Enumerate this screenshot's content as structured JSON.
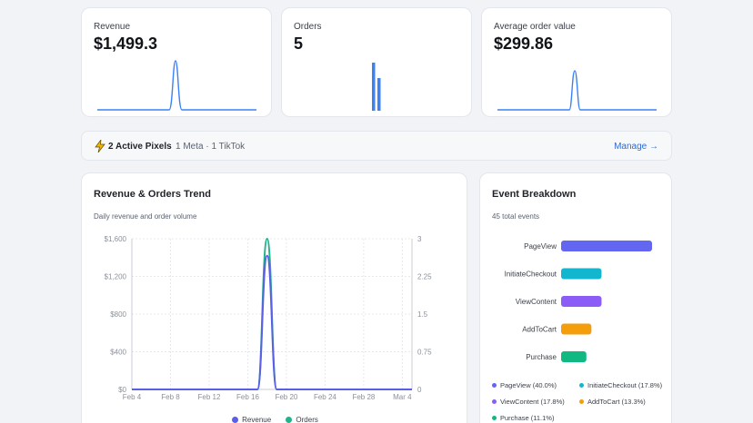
{
  "stats": [
    {
      "label": "Revenue",
      "value": "$1,499.3",
      "color": "#3b82f6"
    },
    {
      "label": "Orders",
      "value": "5",
      "color": "#3b82f6"
    },
    {
      "label": "Average order value",
      "value": "$299.86",
      "color": "#3b82f6"
    }
  ],
  "pixels": {
    "icon": "bolt-icon",
    "title": "2 Active Pixels",
    "detail": "1 Meta · 1 TikTok",
    "manage_label": "Manage →"
  },
  "trend": {
    "title": "Revenue & Orders Trend",
    "subtitle": "Daily revenue and order volume",
    "legend": [
      {
        "name": "Revenue",
        "color": "#5b5fe6"
      },
      {
        "name": "Orders",
        "color": "#1fb48a"
      }
    ]
  },
  "events": {
    "title": "Event Breakdown",
    "subtitle": "45 total events",
    "items": [
      {
        "name": "PageView",
        "count": 18,
        "color": "#6366f1"
      },
      {
        "name": "InitiateCheckout",
        "count": 8,
        "color": "#13b6cf"
      },
      {
        "name": "ViewContent",
        "count": 8,
        "color": "#8b5cf6"
      },
      {
        "name": "AddToCart",
        "count": 6,
        "color": "#f59e0b"
      },
      {
        "name": "Purchase",
        "count": 5,
        "color": "#10b981"
      }
    ],
    "legend": [
      {
        "label": "PageView (40.0%)",
        "color": "#6366f1"
      },
      {
        "label": "InitiateCheckout (17.8%)",
        "color": "#13b6cf"
      },
      {
        "label": "ViewContent (17.8%)",
        "color": "#8b5cf6"
      },
      {
        "label": "AddToCart (13.3%)",
        "color": "#f59e0b"
      },
      {
        "label": "Purchase (11.1%)",
        "color": "#10b981"
      }
    ]
  },
  "chart_data": [
    {
      "type": "line",
      "title": "Revenue & Orders Trend",
      "x_ticks": [
        "Feb 4",
        "Feb 8",
        "Feb 12",
        "Feb 16",
        "Feb 20",
        "Feb 24",
        "Feb 28",
        "Mar 4"
      ],
      "y_left_ticks": [
        "$0",
        "$400",
        "$800",
        "$1,200",
        "$1,600"
      ],
      "y_right_ticks": [
        "0",
        "0.75",
        "1.5",
        "2.25",
        "3"
      ],
      "ylim_left": [
        0,
        1600
      ],
      "ylim_right": [
        0,
        3
      ],
      "x": [
        "Feb 4",
        "Feb 5",
        "Feb 6",
        "Feb 7",
        "Feb 8",
        "Feb 9",
        "Feb 10",
        "Feb 11",
        "Feb 12",
        "Feb 13",
        "Feb 14",
        "Feb 15",
        "Feb 16",
        "Feb 17",
        "Feb 18",
        "Feb 19",
        "Feb 20",
        "Feb 21",
        "Feb 22",
        "Feb 23",
        "Feb 24",
        "Feb 25",
        "Feb 26",
        "Feb 27",
        "Feb 28",
        "Mar 1",
        "Mar 2",
        "Mar 3",
        "Mar 4",
        "Mar 5"
      ],
      "series": [
        {
          "name": "Revenue",
          "axis": "left",
          "values": [
            0,
            0,
            0,
            0,
            0,
            0,
            0,
            0,
            0,
            0,
            0,
            0,
            0,
            0,
            1420,
            0,
            0,
            0,
            0,
            0,
            0,
            0,
            0,
            0,
            0,
            0,
            0,
            0,
            0,
            0
          ]
        },
        {
          "name": "Orders",
          "axis": "right",
          "values": [
            0,
            0,
            0,
            0,
            0,
            0,
            0,
            0,
            0,
            0,
            0,
            0,
            0,
            0,
            3,
            0,
            0,
            0,
            0,
            0,
            0,
            0,
            0,
            0,
            0,
            0,
            0,
            0,
            0,
            0
          ]
        }
      ],
      "grid": true,
      "legend_position": "bottom"
    },
    {
      "type": "bar",
      "title": "Event Breakdown",
      "categories": [
        "PageView",
        "InitiateCheckout",
        "ViewContent",
        "AddToCart",
        "Purchase"
      ],
      "values": [
        18,
        8,
        8,
        6,
        5
      ],
      "orientation": "horizontal"
    }
  ]
}
